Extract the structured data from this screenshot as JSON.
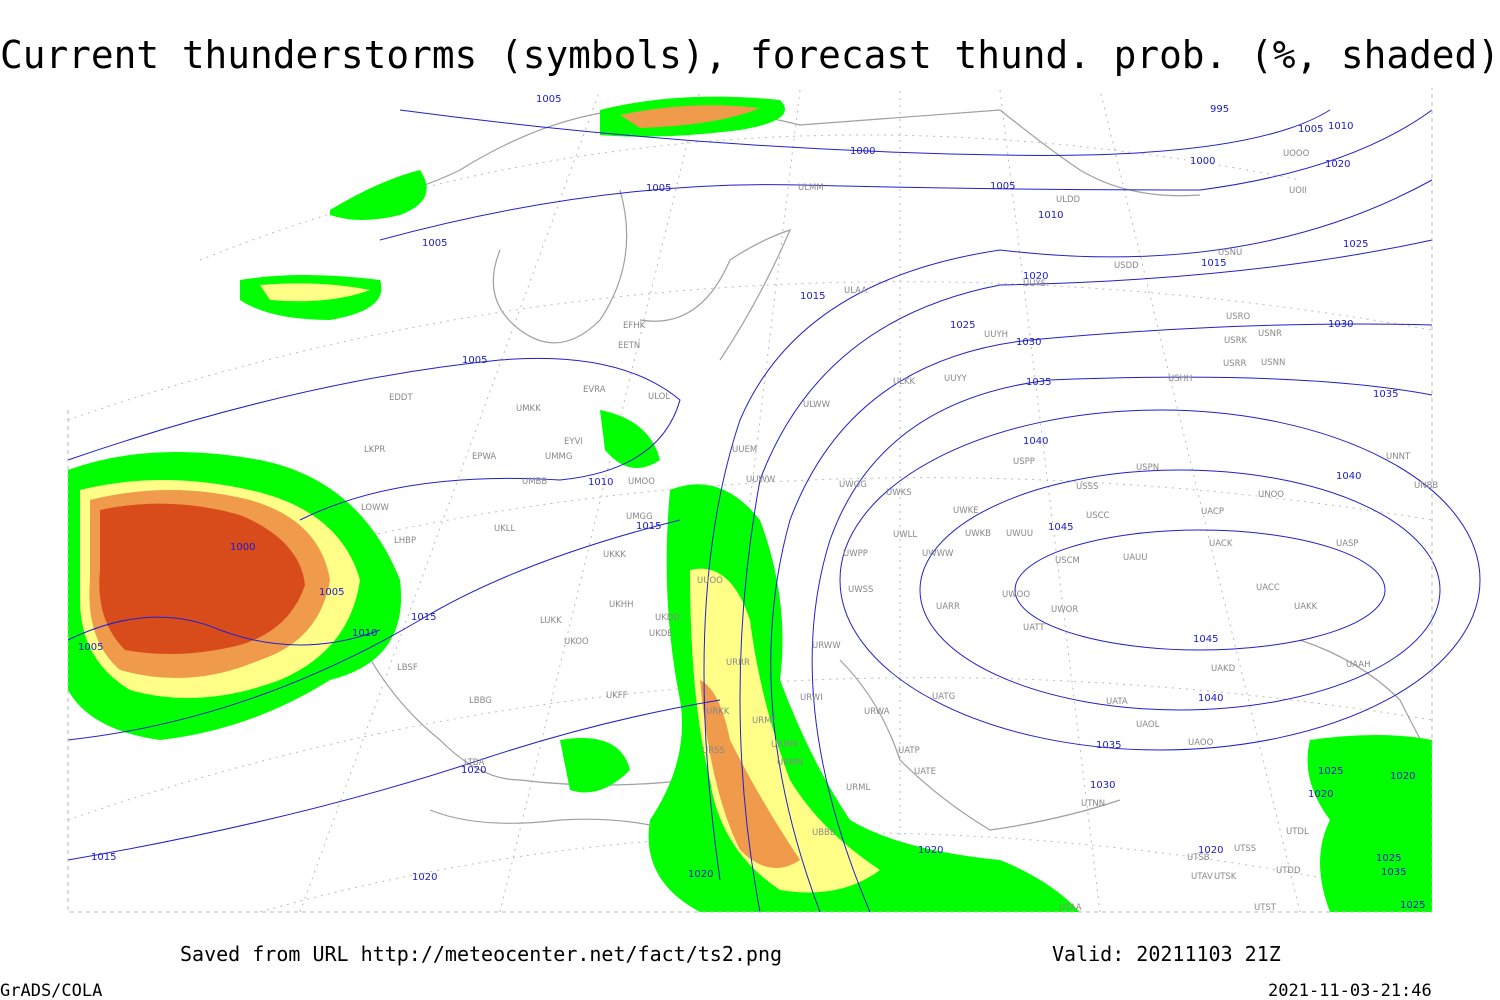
{
  "header": {
    "title": "Current thunderstorms (symbols), forecast thund. prob. (%, shaded)"
  },
  "map": {
    "isobar_labels": [
      1005,
      995,
      1005,
      1010,
      1000,
      1000,
      1020,
      1005,
      1005,
      1010,
      1005,
      1025,
      1015,
      1020,
      1015,
      1030,
      1025,
      1030,
      1005,
      1035,
      1035,
      1040,
      1040,
      1010,
      1045,
      1015,
      1000,
      1005,
      1015,
      1010,
      1005,
      1045,
      1040,
      1035,
      1030,
      1020,
      1025,
      1020,
      1020,
      1015,
      1020,
      1020,
      1025,
      1035,
      1020,
      1020,
      1025
    ],
    "stations": [
      "ULMM",
      "ULDD",
      "USDD",
      "USNU",
      "UOOO",
      "UOII",
      "ULAA",
      "UUYS",
      "USRO",
      "USRK",
      "USNR",
      "USRR",
      "USNN",
      "UUYH",
      "UUYY",
      "ULKK",
      "USHH",
      "ULWW",
      "USPP",
      "USSS",
      "USPN",
      "UNOO",
      "UNNT",
      "UNBB",
      "UACP",
      "USCC",
      "UWKE",
      "UWKS",
      "UWGG",
      "UWKB",
      "UWUU",
      "UWLL",
      "UWWW",
      "UWPP",
      "USCM",
      "UAUU",
      "UACK",
      "UASP",
      "UWSS",
      "UWOO",
      "UWOR",
      "UACC",
      "UAKK",
      "UARR",
      "UATT",
      "URWW",
      "UAKD",
      "UAAH",
      "URWI",
      "UATG",
      "URWA",
      "UATA",
      "UAOL",
      "UAOO",
      "UATP",
      "UATE",
      "URML",
      "UTNN",
      "UTDL",
      "UTSB",
      "UTSS",
      "UTAV",
      "UTSK",
      "UTDD",
      "UTAA",
      "UTST",
      "EFHK",
      "EETN",
      "EVRA",
      "ULOL",
      "UMKK",
      "EDDT",
      "EYVI",
      "UMMG",
      "EPWA",
      "LKPR",
      "UMBB",
      "UMOO",
      "UUEM",
      "UUWW",
      "UMGG",
      "UKLL",
      "LOWW",
      "LHBP",
      "UKKK",
      "UUOO",
      "LUKK",
      "UKHH",
      "UKDD",
      "UKDE",
      "UKOO",
      "URRR",
      "LBSF",
      "UKFF",
      "URKK",
      "LBBG",
      "URMT",
      "URSS",
      "URMM",
      "URMN",
      "LTBA",
      "UBBB"
    ]
  },
  "footer": {
    "saved": "Saved from URL http://meteocenter.net/fact/ts2.png",
    "valid": "Valid: 20211103 21Z",
    "software": "GrADS/COLA",
    "timestamp": "2021-11-03-21:46"
  }
}
